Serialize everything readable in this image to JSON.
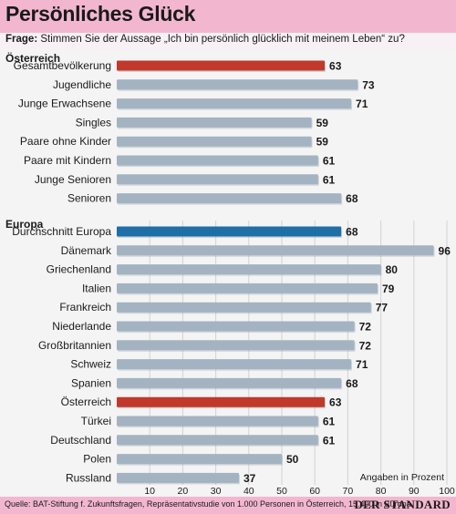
{
  "header": {
    "title": "Persönliches Glück"
  },
  "question": {
    "label": "Frage:",
    "text": " Stimmen Sie der Aussage „Ich bin persönlich glücklich mit meinem Leben“ zu?"
  },
  "footer": {
    "source": "Quelle: BAT-Stiftung f. Zukunftsfragen, Repräsentativstudie von 1.000 Personen in Österreich, 15.400 in Europa",
    "brand": "DER STANDARD"
  },
  "colors": {
    "default": "#a3b3c2",
    "highlight_red": "#c0392b",
    "highlight_blue": "#1e6fa8"
  },
  "chart_data": {
    "type": "bar",
    "orientation": "horizontal",
    "unit_label": "Angaben in Prozent",
    "xlim": [
      0,
      100
    ],
    "xticks": [
      10,
      20,
      30,
      40,
      50,
      60,
      70,
      80,
      90,
      100
    ],
    "groups": [
      {
        "name": "Österreich",
        "items": [
          {
            "label": "Gesamtbevölkerung",
            "value": 63,
            "highlight": "red"
          },
          {
            "label": "Jugendliche",
            "value": 73
          },
          {
            "label": "Junge Erwachsene",
            "value": 71
          },
          {
            "label": "Singles",
            "value": 59
          },
          {
            "label": "Paare ohne Kinder",
            "value": 59
          },
          {
            "label": "Paare mit Kindern",
            "value": 61
          },
          {
            "label": "Junge Senioren",
            "value": 61
          },
          {
            "label": "Senioren",
            "value": 68
          }
        ]
      },
      {
        "name": "Europa",
        "items": [
          {
            "label": "Durchschnitt Europa",
            "value": 68,
            "highlight": "blue"
          },
          {
            "label": "Dänemark",
            "value": 96
          },
          {
            "label": "Griechenland",
            "value": 80
          },
          {
            "label": "Italien",
            "value": 79
          },
          {
            "label": "Frankreich",
            "value": 77
          },
          {
            "label": "Niederlande",
            "value": 72
          },
          {
            "label": "Großbritannien",
            "value": 72
          },
          {
            "label": "Schweiz",
            "value": 71
          },
          {
            "label": "Spanien",
            "value": 68
          },
          {
            "label": "Österreich",
            "value": 63,
            "highlight": "red"
          },
          {
            "label": "Türkei",
            "value": 61
          },
          {
            "label": "Deutschland",
            "value": 61
          },
          {
            "label": "Polen",
            "value": 50
          },
          {
            "label": "Russland",
            "value": 37
          }
        ]
      }
    ]
  }
}
